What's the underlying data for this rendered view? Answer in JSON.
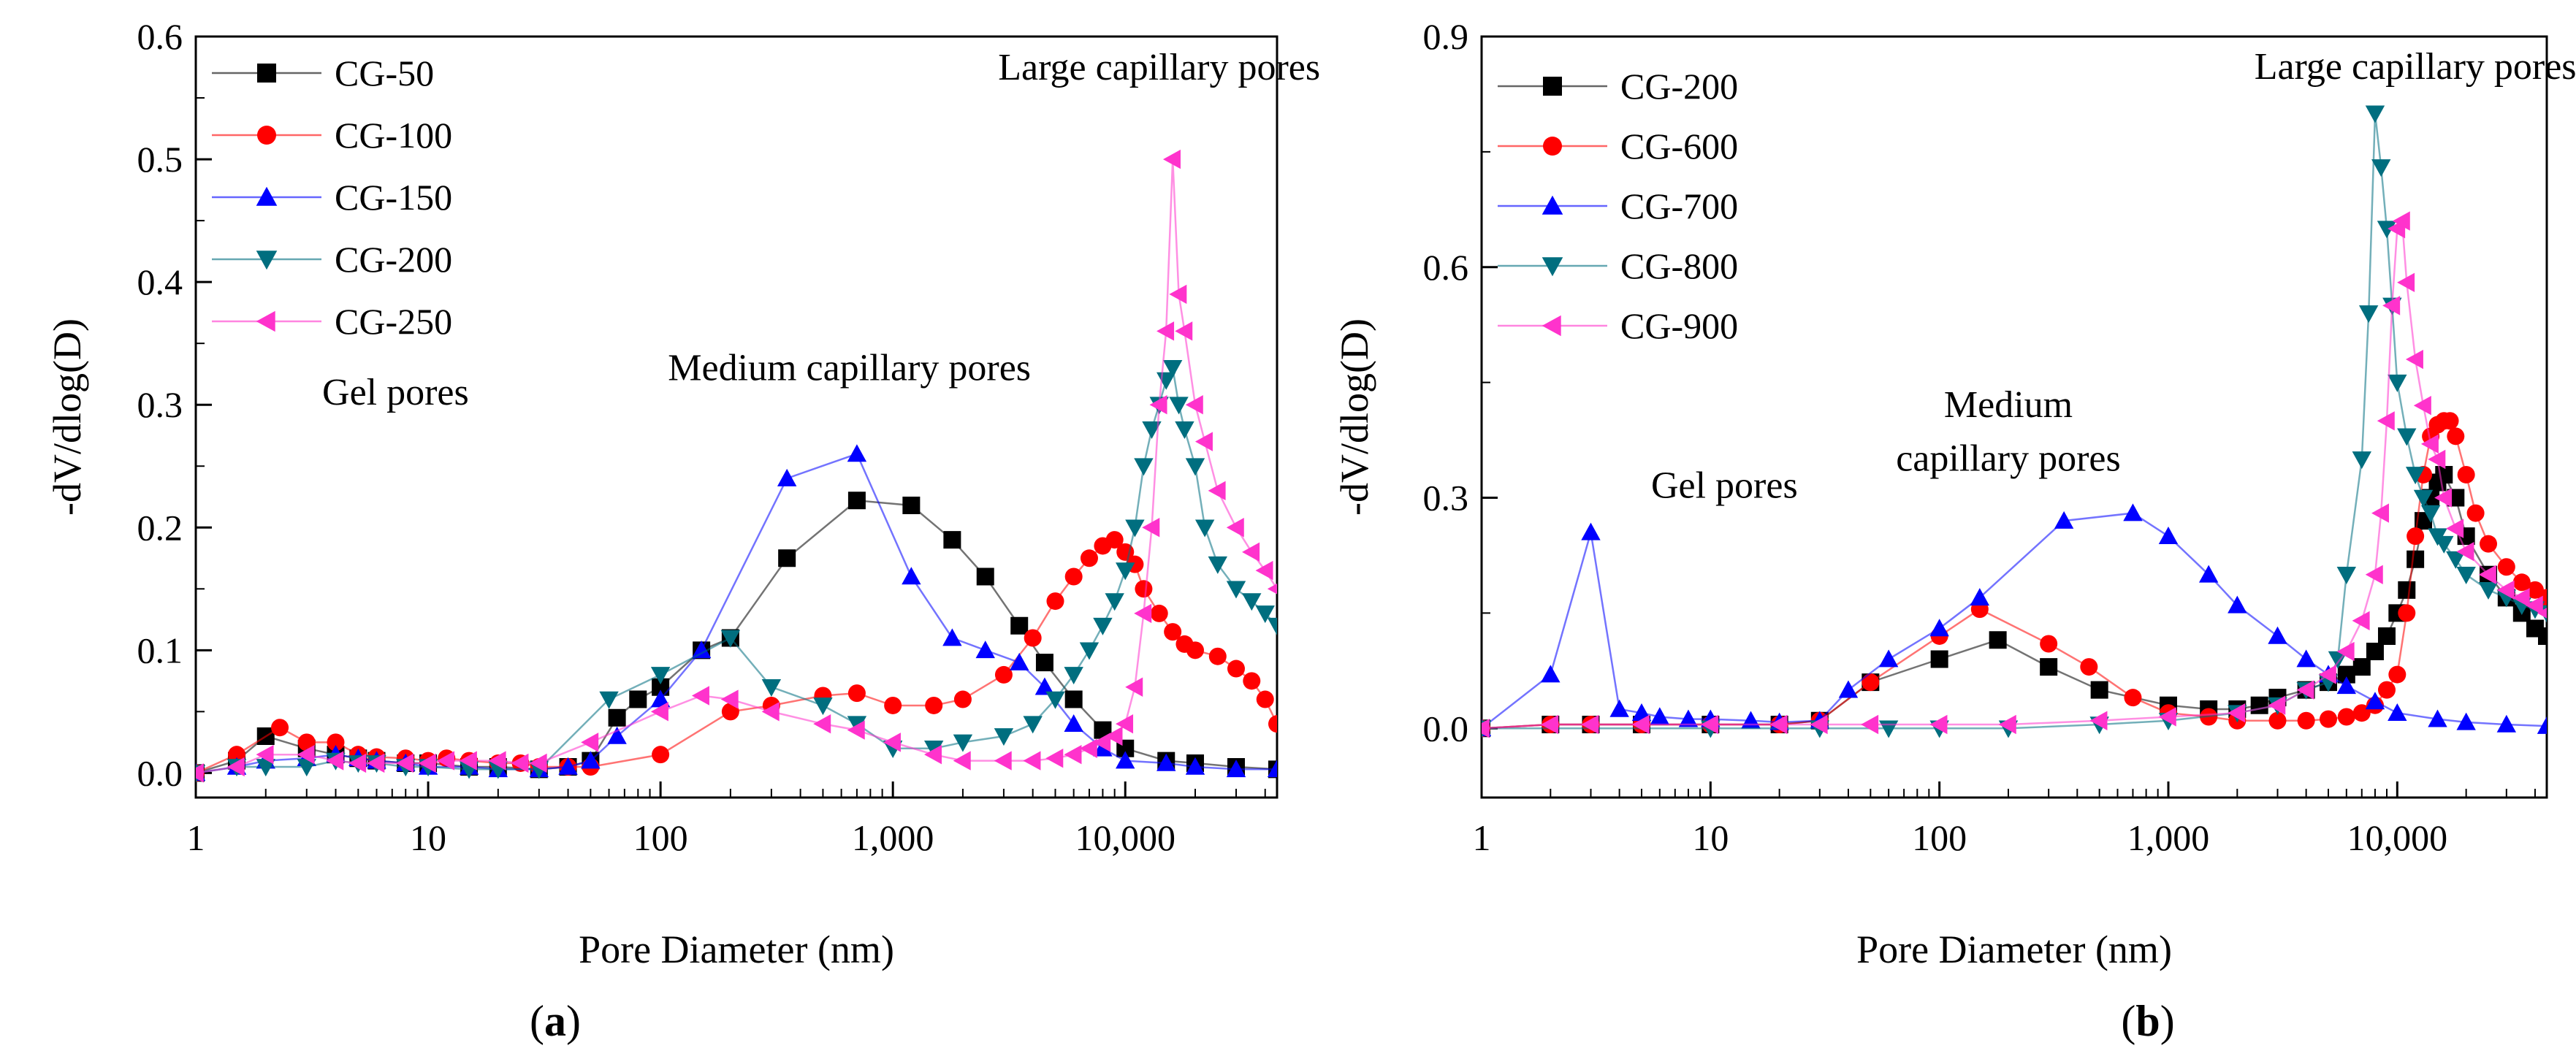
{
  "chart_data": [
    {
      "type": "line",
      "panel_label_open": "(",
      "panel_label": "a",
      "panel_label_close": ")",
      "xlabel": "Pore Diameter (nm)",
      "ylabel": "-dV/dlog(D)",
      "xscale": "log",
      "xlim": [
        1,
        45000
      ],
      "ylim": [
        -0.02,
        0.6
      ],
      "xticks": [
        1,
        10,
        100,
        1000,
        10000
      ],
      "xtick_labels": [
        "1",
        "10",
        "100",
        "1,000",
        "10,000"
      ],
      "yticks": [
        0.0,
        0.1,
        0.2,
        0.3,
        0.4,
        0.5,
        0.6
      ],
      "ytick_labels": [
        "0.0",
        "0.1",
        "0.2",
        "0.3",
        "0.4",
        "0.5",
        "0.6"
      ],
      "legend_position": "top-left",
      "annotations": [
        {
          "text": "Large capillary pores",
          "x": 14000,
          "y": 0.565
        },
        {
          "text": "Medium capillary pores",
          "x": 650,
          "y": 0.32
        },
        {
          "text": "Gel pores",
          "x": 3.5,
          "y": 0.3
        }
      ],
      "series": [
        {
          "name": "CG-50",
          "marker": "square",
          "color": "#000000",
          "x": [
            1,
            1.5,
            2,
            3,
            4,
            5,
            6,
            8,
            10,
            15,
            20,
            30,
            40,
            50,
            65,
            80,
            100,
            150,
            200,
            350,
            700,
            1200,
            1800,
            2500,
            3500,
            4500,
            6000,
            8000,
            10000,
            15000,
            20000,
            30000,
            45000
          ],
          "y": [
            0.0,
            0.01,
            0.03,
            0.02,
            0.015,
            0.012,
            0.01,
            0.008,
            0.008,
            0.005,
            0.005,
            0.003,
            0.005,
            0.01,
            0.045,
            0.06,
            0.07,
            0.1,
            0.11,
            0.175,
            0.222,
            0.218,
            0.19,
            0.16,
            0.12,
            0.09,
            0.06,
            0.035,
            0.02,
            0.01,
            0.008,
            0.005,
            0.003
          ]
        },
        {
          "name": "CG-100",
          "marker": "circle",
          "color": "#ff0000",
          "x": [
            1,
            1.5,
            2.3,
            3,
            4,
            5,
            6,
            8,
            10,
            12,
            15,
            20,
            25,
            30,
            40,
            50,
            100,
            200,
            300,
            500,
            700,
            1000,
            1500,
            2000,
            3000,
            4000,
            5000,
            6000,
            7000,
            8000,
            9000,
            10000,
            11000,
            12000,
            14000,
            16000,
            18000,
            20000,
            25000,
            30000,
            35000,
            40000,
            45000
          ],
          "y": [
            0.0,
            0.015,
            0.037,
            0.025,
            0.025,
            0.015,
            0.013,
            0.012,
            0.01,
            0.012,
            0.01,
            0.008,
            0.008,
            0.005,
            0.005,
            0.005,
            0.015,
            0.05,
            0.055,
            0.063,
            0.065,
            0.055,
            0.055,
            0.06,
            0.08,
            0.11,
            0.14,
            0.16,
            0.175,
            0.185,
            0.19,
            0.18,
            0.17,
            0.15,
            0.13,
            0.115,
            0.105,
            0.1,
            0.095,
            0.085,
            0.075,
            0.06,
            0.04
          ]
        },
        {
          "name": "CG-150",
          "marker": "triangle-up",
          "color": "#0000ff",
          "x": [
            1,
            1.5,
            2,
            3,
            4,
            5,
            6,
            8,
            10,
            15,
            20,
            30,
            40,
            50,
            65,
            100,
            150,
            350,
            700,
            1200,
            1800,
            2500,
            3500,
            4500,
            6000,
            8000,
            10000,
            15000,
            20000,
            30000,
            45000
          ],
          "y": [
            0.0,
            0.005,
            0.01,
            0.012,
            0.015,
            0.012,
            0.01,
            0.008,
            0.005,
            0.005,
            0.003,
            0.003,
            0.005,
            0.01,
            0.03,
            0.06,
            0.1,
            0.24,
            0.26,
            0.16,
            0.11,
            0.1,
            0.09,
            0.07,
            0.04,
            0.02,
            0.01,
            0.008,
            0.005,
            0.003,
            0.003
          ]
        },
        {
          "name": "CG-200",
          "marker": "triangle-down",
          "color": "#006e7f",
          "x": [
            1,
            1.5,
            2,
            3,
            4,
            5,
            6,
            8,
            10,
            15,
            20,
            30,
            60,
            100,
            200,
            300,
            500,
            700,
            1000,
            1500,
            2000,
            3000,
            4000,
            5000,
            6000,
            7000,
            8000,
            9000,
            10000,
            11000,
            12000,
            13000,
            14000,
            15000,
            16000,
            17000,
            18000,
            20000,
            22000,
            25000,
            30000,
            35000,
            40000,
            45000
          ],
          "y": [
            0.0,
            0.005,
            0.005,
            0.005,
            0.01,
            0.008,
            0.008,
            0.005,
            0.005,
            0.003,
            0.003,
            0.003,
            0.06,
            0.08,
            0.11,
            0.07,
            0.055,
            0.04,
            0.02,
            0.02,
            0.025,
            0.03,
            0.04,
            0.06,
            0.08,
            0.1,
            0.12,
            0.14,
            0.165,
            0.2,
            0.25,
            0.28,
            0.3,
            0.32,
            0.33,
            0.3,
            0.28,
            0.25,
            0.2,
            0.17,
            0.15,
            0.14,
            0.13,
            0.12
          ]
        },
        {
          "name": "CG-250",
          "marker": "triangle-left",
          "color": "#ff33cc",
          "x": [
            1,
            1.5,
            2,
            3,
            4,
            5,
            6,
            8,
            10,
            12,
            15,
            20,
            25,
            30,
            50,
            100,
            150,
            200,
            300,
            500,
            700,
            1000,
            1500,
            2000,
            3000,
            4000,
            5000,
            6000,
            7000,
            8000,
            9000,
            10000,
            11000,
            12000,
            13000,
            14000,
            15000,
            16000,
            17000,
            18000,
            20000,
            22000,
            25000,
            30000,
            35000,
            40000,
            45000
          ],
          "y": [
            0.0,
            0.005,
            0.015,
            0.015,
            0.01,
            0.008,
            0.008,
            0.008,
            0.008,
            0.01,
            0.01,
            0.01,
            0.008,
            0.008,
            0.025,
            0.05,
            0.063,
            0.06,
            0.05,
            0.04,
            0.035,
            0.025,
            0.015,
            0.01,
            0.01,
            0.01,
            0.012,
            0.015,
            0.02,
            0.025,
            0.03,
            0.04,
            0.07,
            0.13,
            0.2,
            0.3,
            0.36,
            0.5,
            0.39,
            0.36,
            0.3,
            0.27,
            0.23,
            0.2,
            0.18,
            0.165,
            0.15
          ]
        }
      ]
    },
    {
      "type": "line",
      "panel_label_open": "(",
      "panel_label": "b",
      "panel_label_close": ")",
      "xlabel": "Pore Diameter (nm)",
      "ylabel": "-dV/dlog(D)",
      "xscale": "log",
      "xlim": [
        1,
        45000
      ],
      "ylim": [
        -0.09,
        0.9
      ],
      "xticks": [
        1,
        10,
        100,
        1000,
        10000
      ],
      "xtick_labels": [
        "1",
        "10",
        "100",
        "1,000",
        "10,000"
      ],
      "yticks": [
        0.0,
        0.3,
        0.6,
        0.9
      ],
      "ytick_labels": [
        "0.0",
        "0.3",
        "0.6",
        "0.9"
      ],
      "legend_position": "top-left",
      "annotations": [
        {
          "text": "Large capillary pores",
          "x": 12000,
          "y": 0.845
        },
        {
          "text": "Medium",
          "x": 200,
          "y": 0.405
        },
        {
          "text": "capillary pores",
          "x": 200,
          "y": 0.335
        },
        {
          "text": "Gel pores",
          "x": 5.5,
          "y": 0.3
        }
      ],
      "series": [
        {
          "name": "CG-200",
          "marker": "square",
          "color": "#000000",
          "x": [
            1,
            2,
            3,
            5,
            10,
            20,
            30,
            50,
            100,
            180,
            300,
            500,
            1000,
            1500,
            2000,
            2500,
            3000,
            4000,
            5000,
            6000,
            7000,
            8000,
            9000,
            10000,
            11000,
            12000,
            13000,
            14000,
            15000,
            16000,
            18000,
            20000,
            25000,
            30000,
            35000,
            40000,
            45000
          ],
          "y": [
            0.0,
            0.005,
            0.005,
            0.005,
            0.005,
            0.005,
            0.01,
            0.06,
            0.09,
            0.115,
            0.08,
            0.05,
            0.03,
            0.025,
            0.025,
            0.03,
            0.04,
            0.05,
            0.06,
            0.07,
            0.08,
            0.1,
            0.12,
            0.15,
            0.18,
            0.22,
            0.27,
            0.3,
            0.32,
            0.33,
            0.3,
            0.25,
            0.2,
            0.17,
            0.15,
            0.13,
            0.12
          ]
        },
        {
          "name": "CG-600",
          "marker": "circle",
          "color": "#ff0000",
          "x": [
            1,
            2,
            3,
            5,
            10,
            20,
            30,
            50,
            100,
            150,
            300,
            450,
            700,
            1000,
            1500,
            2000,
            3000,
            4000,
            5000,
            6000,
            7000,
            8000,
            9000,
            10000,
            11000,
            12000,
            13000,
            14000,
            15000,
            16000,
            17000,
            18000,
            20000,
            22000,
            25000,
            30000,
            35000,
            40000,
            45000
          ],
          "y": [
            0.0,
            0.005,
            0.005,
            0.005,
            0.005,
            0.005,
            0.01,
            0.06,
            0.12,
            0.155,
            0.11,
            0.08,
            0.04,
            0.02,
            0.015,
            0.01,
            0.01,
            0.01,
            0.012,
            0.015,
            0.02,
            0.03,
            0.05,
            0.07,
            0.15,
            0.25,
            0.33,
            0.38,
            0.395,
            0.4,
            0.4,
            0.38,
            0.33,
            0.28,
            0.24,
            0.21,
            0.19,
            0.18,
            0.17
          ]
        },
        {
          "name": "CG-700",
          "marker": "triangle-up",
          "color": "#0000ff",
          "x": [
            1,
            2,
            3,
            4,
            5,
            6,
            8,
            10,
            15,
            20,
            30,
            40,
            60,
            100,
            150,
            350,
            700,
            1000,
            1500,
            2000,
            3000,
            4000,
            5000,
            6000,
            8000,
            10000,
            15000,
            20000,
            30000,
            45000
          ],
          "y": [
            0.0,
            0.07,
            0.255,
            0.025,
            0.02,
            0.015,
            0.012,
            0.012,
            0.01,
            0.008,
            0.01,
            0.05,
            0.09,
            0.13,
            0.17,
            0.27,
            0.28,
            0.25,
            0.2,
            0.16,
            0.12,
            0.09,
            0.07,
            0.055,
            0.035,
            0.02,
            0.012,
            0.008,
            0.005,
            0.003
          ]
        },
        {
          "name": "CG-800",
          "marker": "triangle-down",
          "color": "#006e7f",
          "x": [
            1,
            10,
            30,
            60,
            100,
            200,
            500,
            1000,
            2000,
            3000,
            4000,
            5000,
            5500,
            6000,
            7000,
            7500,
            8000,
            8500,
            9000,
            9500,
            10000,
            11000,
            12000,
            13000,
            14000,
            15000,
            16000,
            18000,
            20000,
            25000,
            30000,
            35000,
            40000,
            45000
          ],
          "y": [
            0.0,
            0.0,
            0.0,
            0.0,
            0.0,
            0.0,
            0.005,
            0.01,
            0.02,
            0.03,
            0.05,
            0.06,
            0.09,
            0.2,
            0.35,
            0.54,
            0.8,
            0.73,
            0.65,
            0.55,
            0.45,
            0.38,
            0.33,
            0.3,
            0.28,
            0.25,
            0.24,
            0.22,
            0.2,
            0.18,
            0.17,
            0.16,
            0.155,
            0.15
          ]
        },
        {
          "name": "CG-900",
          "marker": "triangle-left",
          "color": "#ff33cc",
          "x": [
            1,
            2,
            3,
            5,
            10,
            20,
            30,
            50,
            100,
            200,
            500,
            1000,
            2000,
            3000,
            4000,
            5000,
            6000,
            7000,
            8000,
            8500,
            9000,
            9500,
            10000,
            10500,
            11000,
            12000,
            13000,
            14000,
            15000,
            16000,
            18000,
            20000,
            25000,
            30000,
            35000,
            40000,
            45000
          ],
          "y": [
            0.0,
            0.005,
            0.005,
            0.005,
            0.005,
            0.005,
            0.005,
            0.005,
            0.005,
            0.005,
            0.01,
            0.015,
            0.02,
            0.03,
            0.05,
            0.07,
            0.1,
            0.14,
            0.2,
            0.28,
            0.4,
            0.55,
            0.65,
            0.66,
            0.58,
            0.48,
            0.42,
            0.37,
            0.35,
            0.3,
            0.26,
            0.23,
            0.2,
            0.18,
            0.17,
            0.16,
            0.15
          ]
        }
      ]
    }
  ]
}
